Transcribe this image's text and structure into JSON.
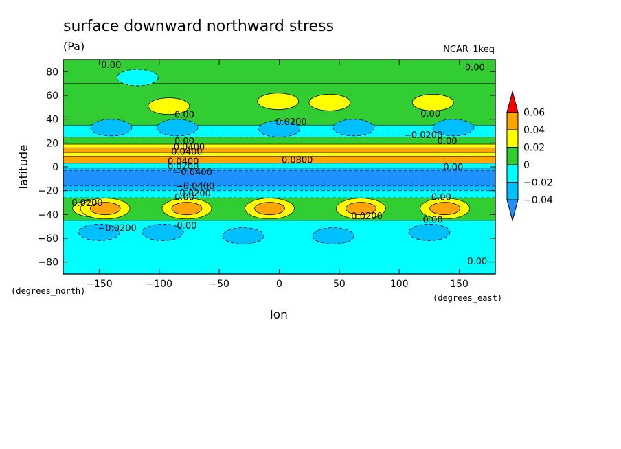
{
  "chart_data": {
    "type": "heatmap",
    "title": "surface downward northward stress",
    "units": "(Pa)",
    "model": "NCAR_1keq",
    "xlabel": "lon",
    "ylabel": "latitude",
    "x_units": "(degrees_east)",
    "y_units": "(degrees_north)",
    "xlim": [
      -180,
      180
    ],
    "ylim": [
      -90,
      90
    ],
    "x_ticks": [
      -150,
      -100,
      -50,
      0,
      50,
      100,
      150
    ],
    "x_tick_labels": [
      "−150",
      "−100",
      "−50",
      "0",
      "50",
      "100",
      "150"
    ],
    "y_ticks": [
      80,
      60,
      40,
      20,
      0,
      -20,
      -40,
      -60,
      -80
    ],
    "y_tick_labels": [
      "80",
      "60",
      "40",
      "20",
      "0",
      "−20",
      "−40",
      "−60",
      "−80"
    ],
    "colorbar": {
      "levels": [
        -0.04,
        -0.02,
        0,
        0.02,
        0.04,
        0.06
      ],
      "labels": [
        "−0.04",
        "−0.02",
        "0",
        "0.02",
        "0.04",
        "0.06"
      ],
      "colors": [
        "#1e90ff",
        "#00bfff",
        "#00ffff",
        "#32cd32",
        "#ffff00",
        "#ffa500",
        "#ff0000"
      ]
    },
    "bands": [
      {
        "lat": [
          70,
          90
        ],
        "value": 0.01
      },
      {
        "lat": [
          35,
          70
        ],
        "value": 0.01
      },
      {
        "lat": [
          25,
          35
        ],
        "value": -0.01
      },
      {
        "lat": [
          19,
          25
        ],
        "value": 0.01
      },
      {
        "lat": [
          16,
          19
        ],
        "value": 0.03
      },
      {
        "lat": [
          12,
          16
        ],
        "value": 0.05
      },
      {
        "lat": [
          9,
          12
        ],
        "value": 0.03
      },
      {
        "lat": [
          3,
          9
        ],
        "value": 0.05
      },
      {
        "lat": [
          -1,
          3
        ],
        "value": -0.01
      },
      {
        "lat": [
          -3,
          -1
        ],
        "value": -0.03
      },
      {
        "lat": [
          -16,
          -3
        ],
        "value": -0.05
      },
      {
        "lat": [
          -20,
          -16
        ],
        "value": -0.03
      },
      {
        "lat": [
          -26,
          -20
        ],
        "value": -0.01
      },
      {
        "lat": [
          -45,
          -26
        ],
        "value": 0.01
      },
      {
        "lat": [
          -90,
          -45
        ],
        "value": -0.01
      }
    ],
    "cells": [
      {
        "lon": -118,
        "lat": 75,
        "value": -0.01
      },
      {
        "lon": -92,
        "lat": 51,
        "value": 0.03
      },
      {
        "lon": 42,
        "lat": 54,
        "value": 0.03
      },
      {
        "lon": 128,
        "lat": 54,
        "value": 0.03
      },
      {
        "lon": -1,
        "lat": 55,
        "value": 0.03
      },
      {
        "lon": -140,
        "lat": 33,
        "value": -0.03
      },
      {
        "lon": -85,
        "lat": 33,
        "value": -0.03
      },
      {
        "lon": 0,
        "lat": 32,
        "value": -0.03
      },
      {
        "lon": 62,
        "lat": 33,
        "value": -0.03
      },
      {
        "lon": 145,
        "lat": 33,
        "value": -0.03
      },
      {
        "lon": -155,
        "lat": -35,
        "value": 0.03
      },
      {
        "lon": -145,
        "lat": -35,
        "value": 0.05
      },
      {
        "lon": -77,
        "lat": -35,
        "value": 0.05
      },
      {
        "lon": -8,
        "lat": -35,
        "value": 0.05
      },
      {
        "lon": 68,
        "lat": -35,
        "value": 0.05
      },
      {
        "lon": 138,
        "lat": -35,
        "value": 0.05
      },
      {
        "lon": -150,
        "lat": -55,
        "value": -0.03
      },
      {
        "lon": -97,
        "lat": -55,
        "value": -0.03
      },
      {
        "lon": -30,
        "lat": -58,
        "value": -0.03
      },
      {
        "lon": 45,
        "lat": -58,
        "value": -0.03
      },
      {
        "lon": 125,
        "lat": -55,
        "value": -0.03
      }
    ],
    "contour_labels": [
      {
        "lon": -140,
        "lat": 86,
        "text": "0.00"
      },
      {
        "lon": 163,
        "lat": 84,
        "text": "0.00"
      },
      {
        "lon": -79,
        "lat": 44,
        "text": "0.00"
      },
      {
        "lon": 10,
        "lat": 38,
        "text": "0.0200"
      },
      {
        "lon": 126,
        "lat": 45,
        "text": "0.00"
      },
      {
        "lon": 120,
        "lat": 27,
        "text": "−0.0200"
      },
      {
        "lon": 140,
        "lat": 22,
        "text": "0.00"
      },
      {
        "lon": -79,
        "lat": 22,
        "text": "0.00"
      },
      {
        "lon": -75,
        "lat": 17,
        "text": "0.0400"
      },
      {
        "lon": -77,
        "lat": 13,
        "text": "0.0400"
      },
      {
        "lon": -80,
        "lat": 5,
        "text": "0.0400"
      },
      {
        "lon": 15,
        "lat": 6,
        "text": "0.0800"
      },
      {
        "lon": -80,
        "lat": 1,
        "text": "0.0200"
      },
      {
        "lon": -72,
        "lat": -4,
        "text": "−0.0400"
      },
      {
        "lon": 145,
        "lat": 0,
        "text": "0.00"
      },
      {
        "lon": -70,
        "lat": -16,
        "text": "−0.0400"
      },
      {
        "lon": -70,
        "lat": -22,
        "text": "0.0200"
      },
      {
        "lon": -79,
        "lat": -25,
        "text": "0.00"
      },
      {
        "lon": -160,
        "lat": -30,
        "text": "0.0200"
      },
      {
        "lon": 73,
        "lat": -41,
        "text": "0.0200"
      },
      {
        "lon": 135,
        "lat": -25,
        "text": "0.00"
      },
      {
        "lon": 128,
        "lat": -44,
        "text": "0.00"
      },
      {
        "lon": -135,
        "lat": -51,
        "text": "−0.0200"
      },
      {
        "lon": -77,
        "lat": -49,
        "text": "0.00"
      },
      {
        "lon": 165,
        "lat": -79,
        "text": "0.00"
      }
    ]
  }
}
